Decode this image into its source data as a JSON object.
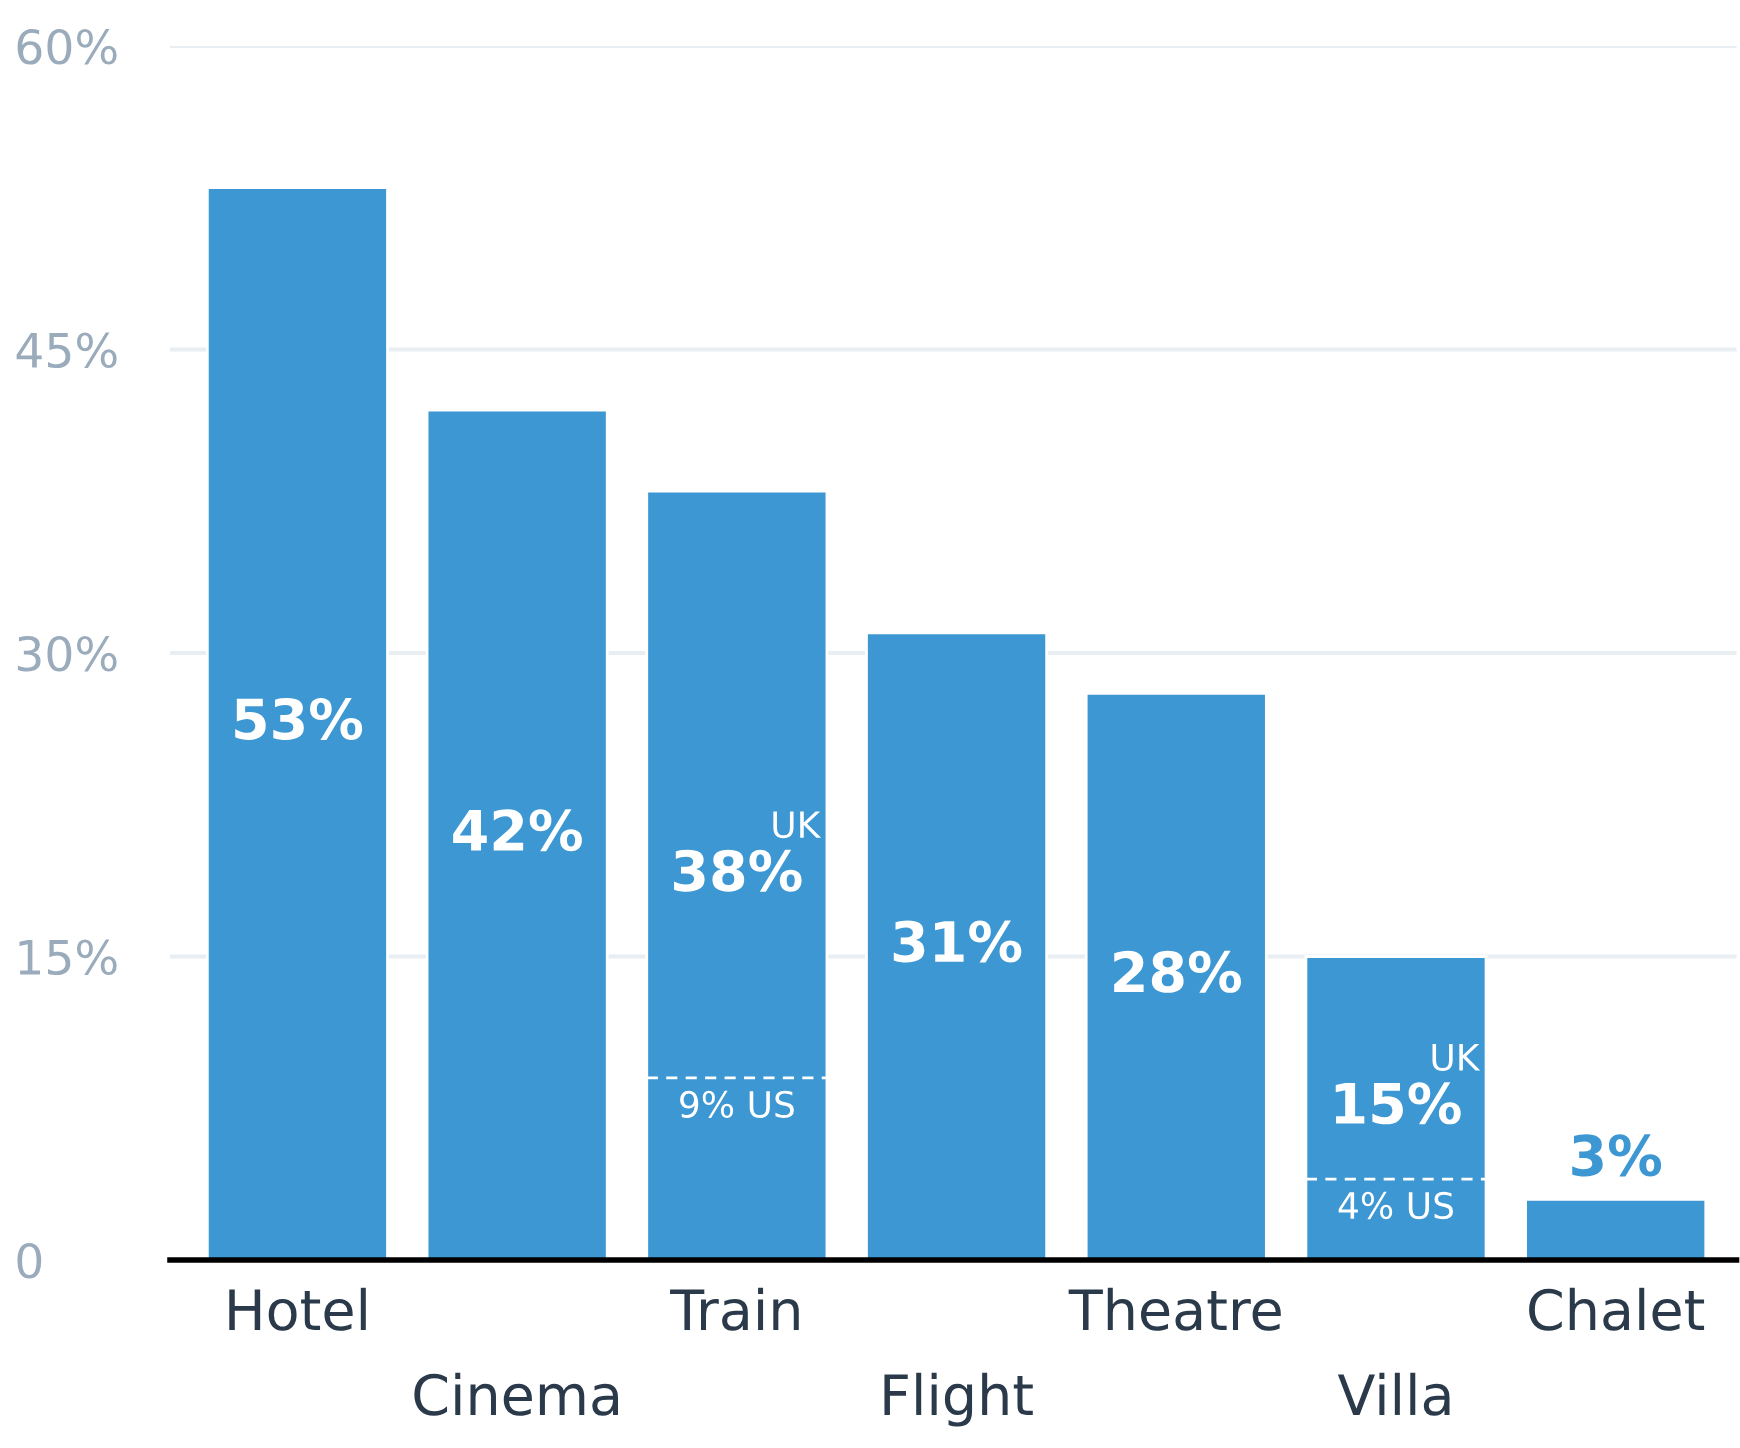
{
  "chart_data": {
    "type": "bar",
    "categories": [
      "Hotel",
      "Cinema",
      "Train",
      "Flight",
      "Theatre",
      "Villa",
      "Chalet"
    ],
    "values": [
      53,
      42,
      38,
      31,
      28,
      15,
      3
    ],
    "value_labels": [
      "53%",
      "42%",
      "38%",
      "31%",
      "28%",
      "15%",
      "3%"
    ],
    "color": "#3d97d3",
    "ylim": [
      0,
      60
    ],
    "yticks": [
      {
        "value": 0,
        "label": "0"
      },
      {
        "value": 15,
        "label": "15%"
      },
      {
        "value": 30,
        "label": "30%"
      },
      {
        "value": 45,
        "label": "45%"
      },
      {
        "value": 60,
        "label": "60%"
      }
    ],
    "grid": "y",
    "annotations": [
      "UK",
      "9% US",
      "UK",
      "4% US"
    ]
  }
}
